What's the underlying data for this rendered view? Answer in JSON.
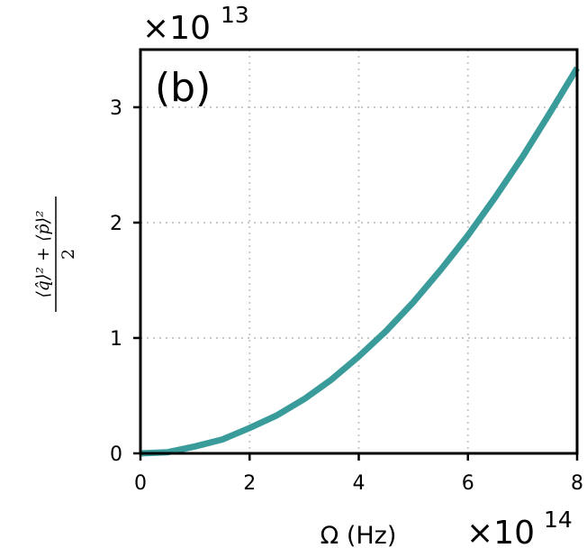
{
  "chart_data": {
    "type": "line",
    "panel_label": "(b)",
    "xlabel": "Ω (Hz)",
    "x_multiplier": {
      "base": "×10",
      "exp": "14"
    },
    "y_multiplier": {
      "base": "×10",
      "exp": "13"
    },
    "ylabel": {
      "numerator": "⟨q̂⟩² + ⟨p̂⟩²",
      "denominator": "2"
    },
    "xlim": [
      0,
      8
    ],
    "ylim": [
      0,
      3.5
    ],
    "xticks": [
      0,
      2,
      4,
      6,
      8
    ],
    "xtick_labels": [
      "0",
      "2",
      "4",
      "6",
      "8"
    ],
    "yticks": [
      0,
      1,
      2,
      3
    ],
    "ytick_labels": [
      "0",
      "1",
      "2",
      "3"
    ],
    "grid": true,
    "series": [
      {
        "color": "#3a9b9b",
        "x": [
          0,
          0.5,
          1,
          1.5,
          2,
          2.5,
          3,
          3.5,
          4,
          4.5,
          5,
          5.5,
          6,
          6.5,
          7,
          7.5,
          8
        ],
        "y": [
          0.0,
          0.01,
          0.06,
          0.12,
          0.22,
          0.33,
          0.47,
          0.64,
          0.84,
          1.06,
          1.31,
          1.59,
          1.89,
          2.22,
          2.57,
          2.95,
          3.34
        ]
      }
    ]
  }
}
